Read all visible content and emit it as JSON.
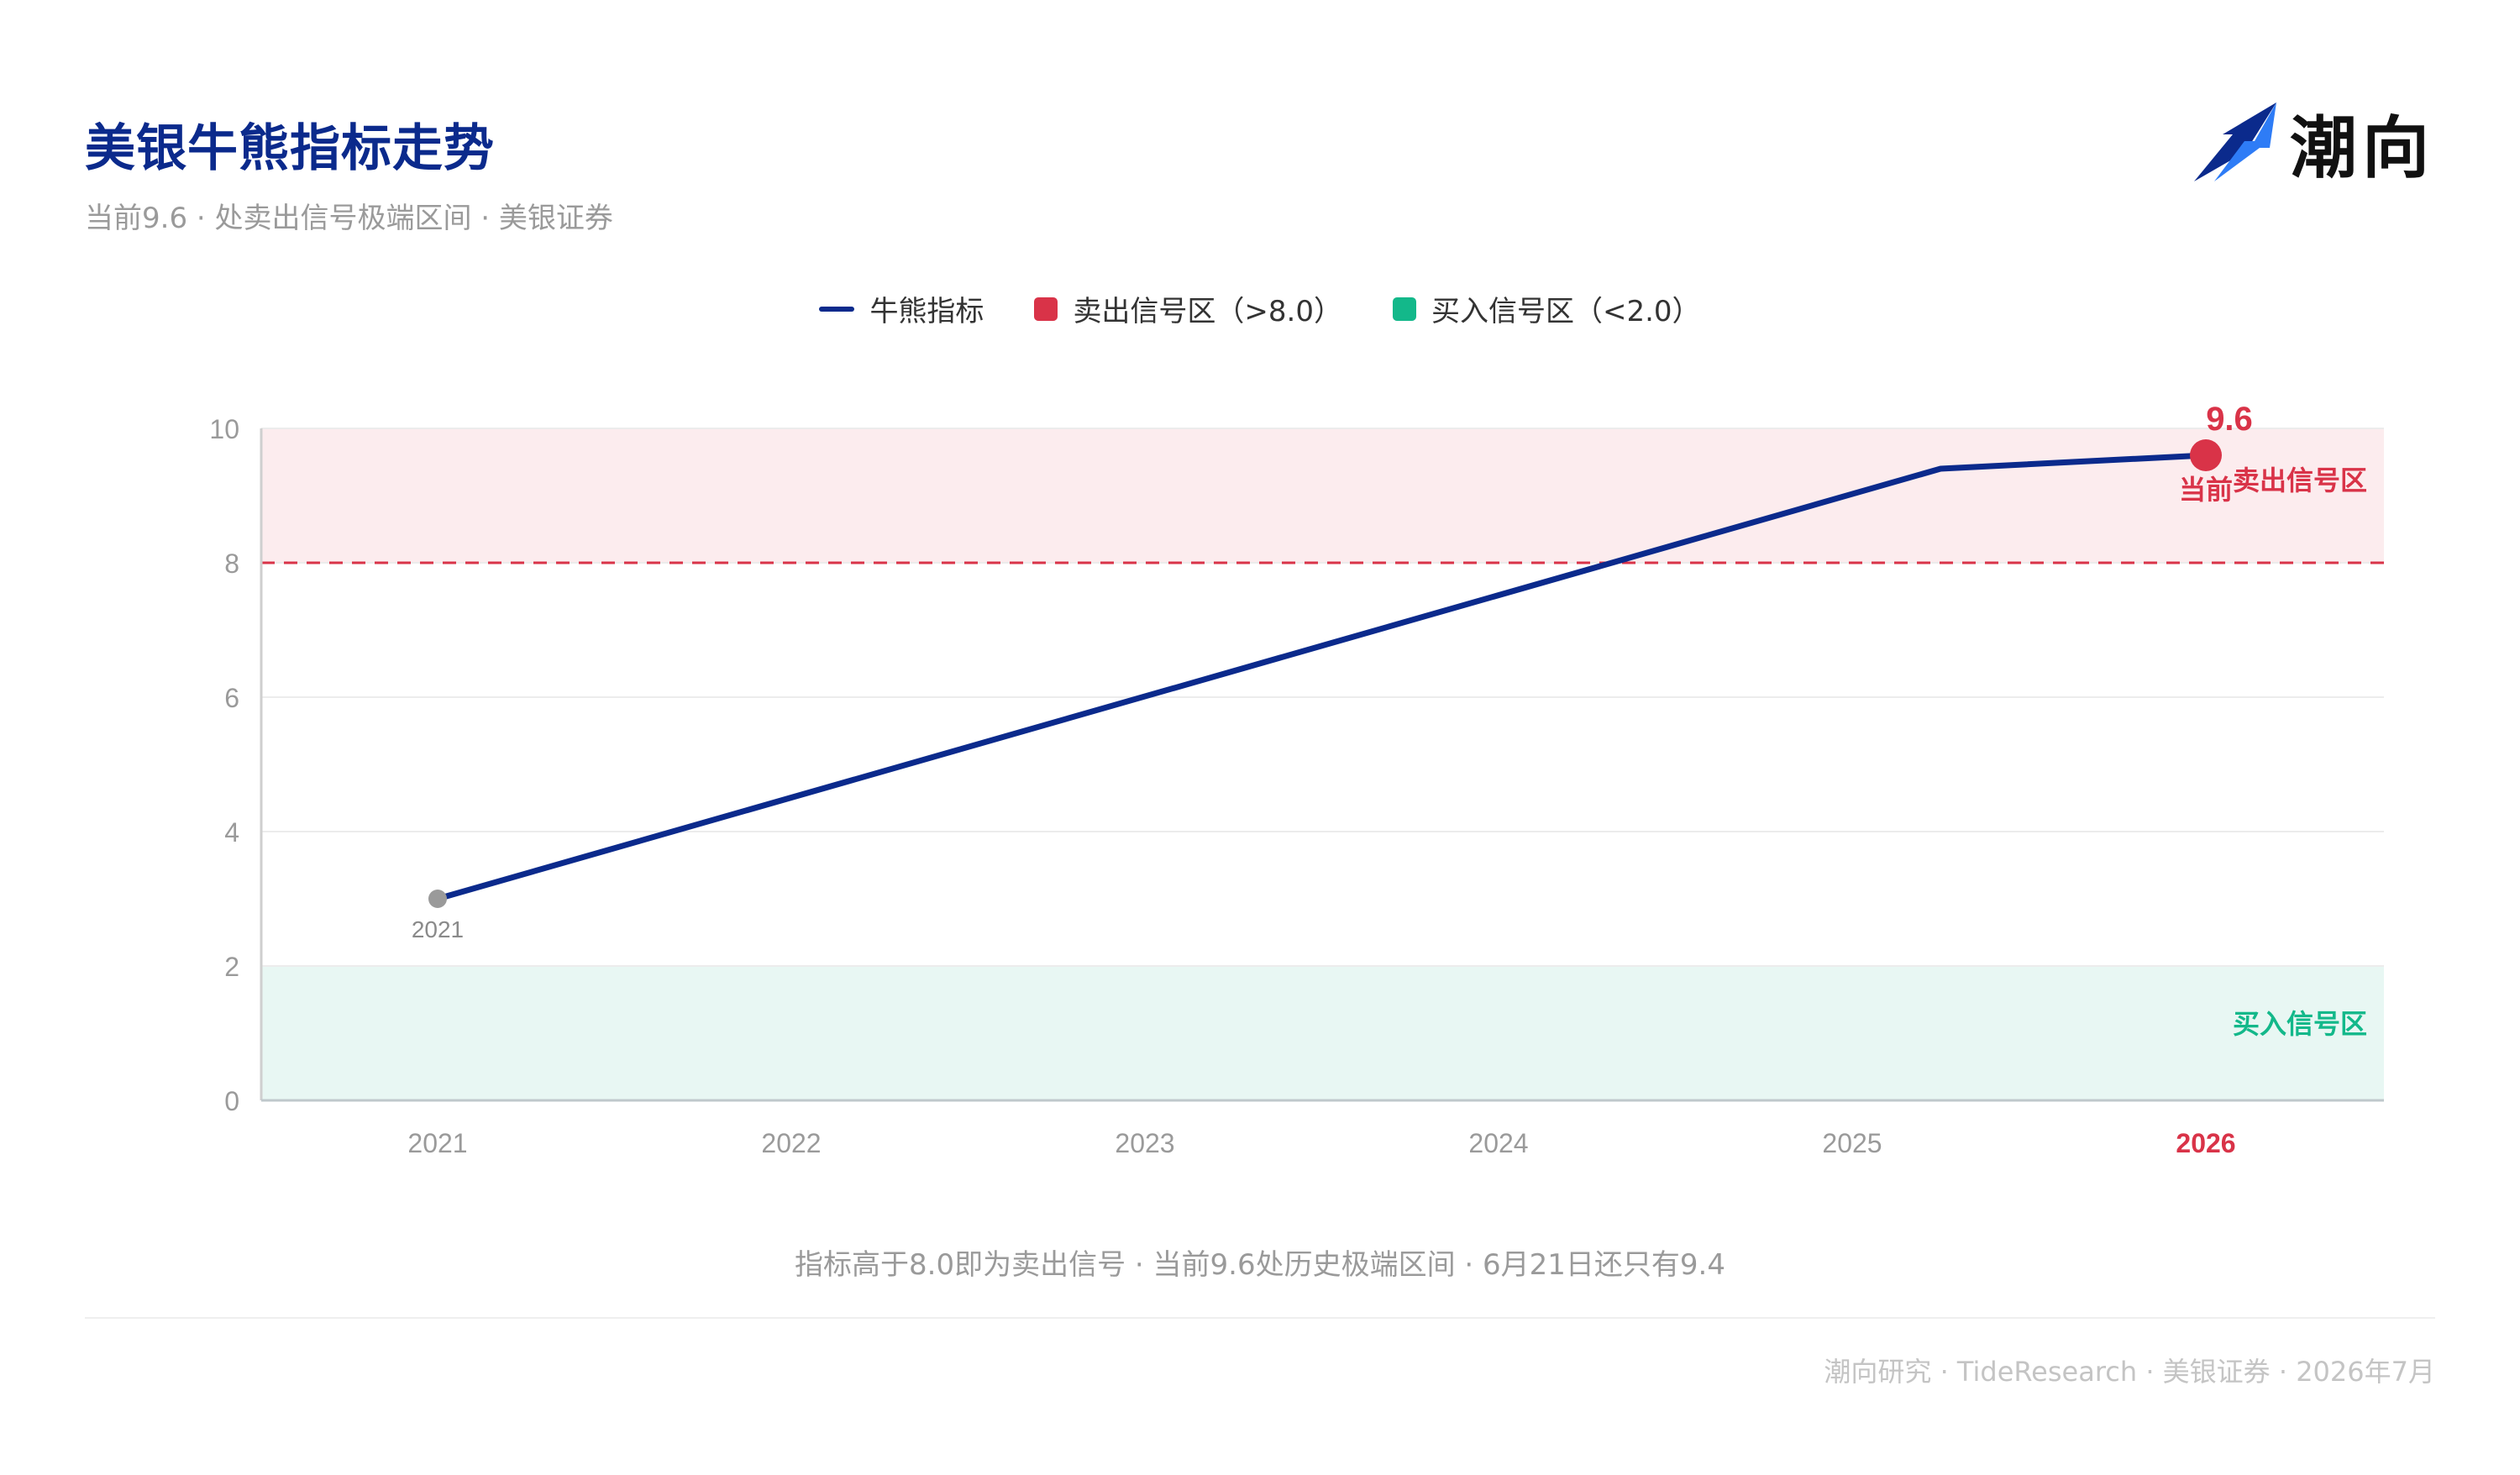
{
  "header": {
    "title": "美银牛熊指标走势",
    "subtitle": "当前9.6 · 处卖出信号极端区间 · 美银证券"
  },
  "logo": {
    "text": "潮向",
    "icon": "tide-arrow-icon"
  },
  "legend": {
    "items": [
      {
        "label": "牛熊指标",
        "kind": "line",
        "color": "#0b2a8c"
      },
      {
        "label": "卖出信号区（>8.0）",
        "kind": "square",
        "color": "#d93348"
      },
      {
        "label": "买入信号区（<2.0）",
        "kind": "square",
        "color": "#13b88a"
      }
    ]
  },
  "chart_data": {
    "type": "line",
    "x_categories": [
      "2021",
      "2022",
      "2023",
      "2024",
      "2025",
      "2026"
    ],
    "highlight_category": "2026",
    "ylim": [
      0,
      10
    ],
    "y_ticks": [
      "0",
      "2",
      "4",
      "6",
      "8",
      "10"
    ],
    "grid": true,
    "series": [
      {
        "name": "牛熊指标",
        "color": "#0b2a8c",
        "points": [
          {
            "x": 2021.0,
            "y": 3.0
          },
          {
            "x": 2025.25,
            "y": 9.4
          },
          {
            "x": 2026.0,
            "y": 9.6
          }
        ]
      }
    ],
    "threshold": {
      "value": 8.0,
      "color": "#d93348",
      "style": "dashed"
    },
    "zones": [
      {
        "name": "卖出信号区",
        "from": 8.0,
        "to": 10.0,
        "fill": "#fcecee",
        "text_color": "#d93348",
        "label": "卖出信号区"
      },
      {
        "name": "买入信号区",
        "from": 0.0,
        "to": 2.0,
        "fill": "#e8f7f3",
        "text_color": "#13b88a",
        "label": "买入信号区"
      }
    ],
    "start_marker": {
      "x": 2021.0,
      "y": 3.0,
      "label": "2021",
      "color": "#9a9a9a"
    },
    "current_marker": {
      "x": 2026.0,
      "y": 9.6,
      "value_label": "9.6",
      "text_label": "当前",
      "color": "#d93348"
    }
  },
  "footnote": "指标高于8.0即为卖出信号 · 当前9.6处历史极端区间 · 6月21日还只有9.4",
  "footer": "潮向研究 · TideResearch · 美银证券 · 2026年7月"
}
